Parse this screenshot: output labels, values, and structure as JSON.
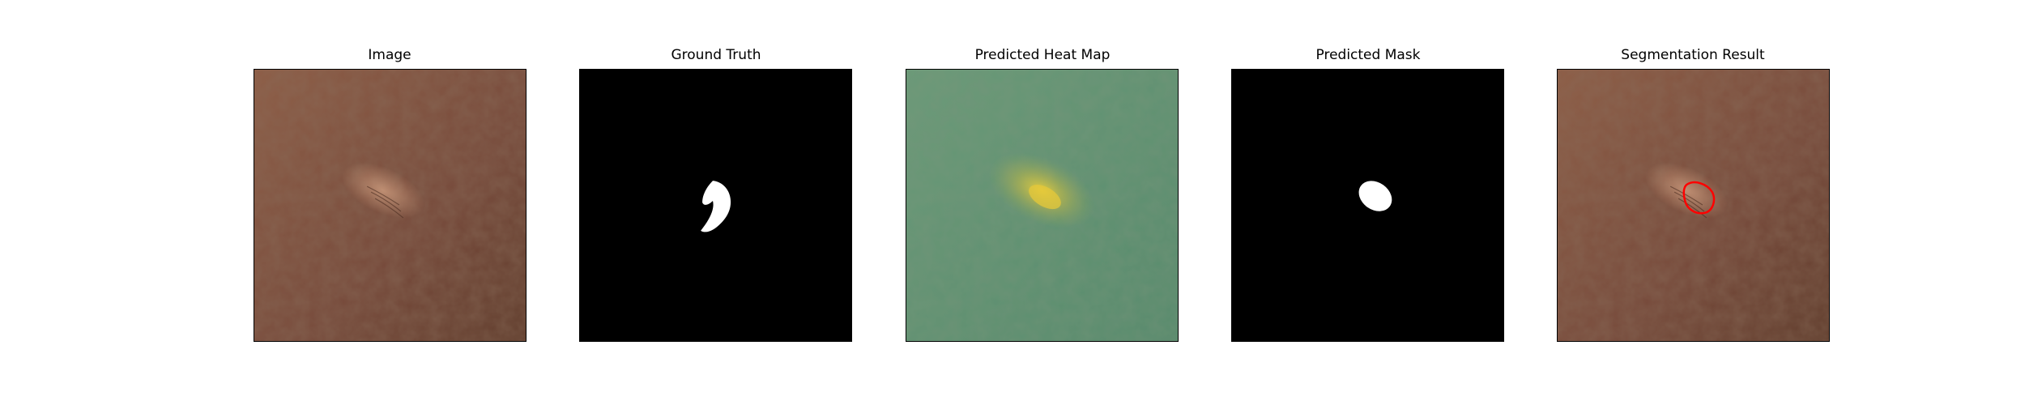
{
  "figure": {
    "panels": [
      {
        "title": "Image"
      },
      {
        "title": "Ground Truth"
      },
      {
        "title": "Predicted Heat Map"
      },
      {
        "title": "Predicted Mask"
      },
      {
        "title": "Segmentation Result"
      }
    ]
  },
  "colors": {
    "leather_base": "#7b4e3a",
    "leather_light": "#8e5d46",
    "leather_dark": "#5e3a2a",
    "mask_background": "#000000",
    "mask_foreground": "#ffffff",
    "heatmap_base": "#5f9474",
    "heatmap_hot": "#d7c23f",
    "segmentation_outline": "#ff0000"
  }
}
